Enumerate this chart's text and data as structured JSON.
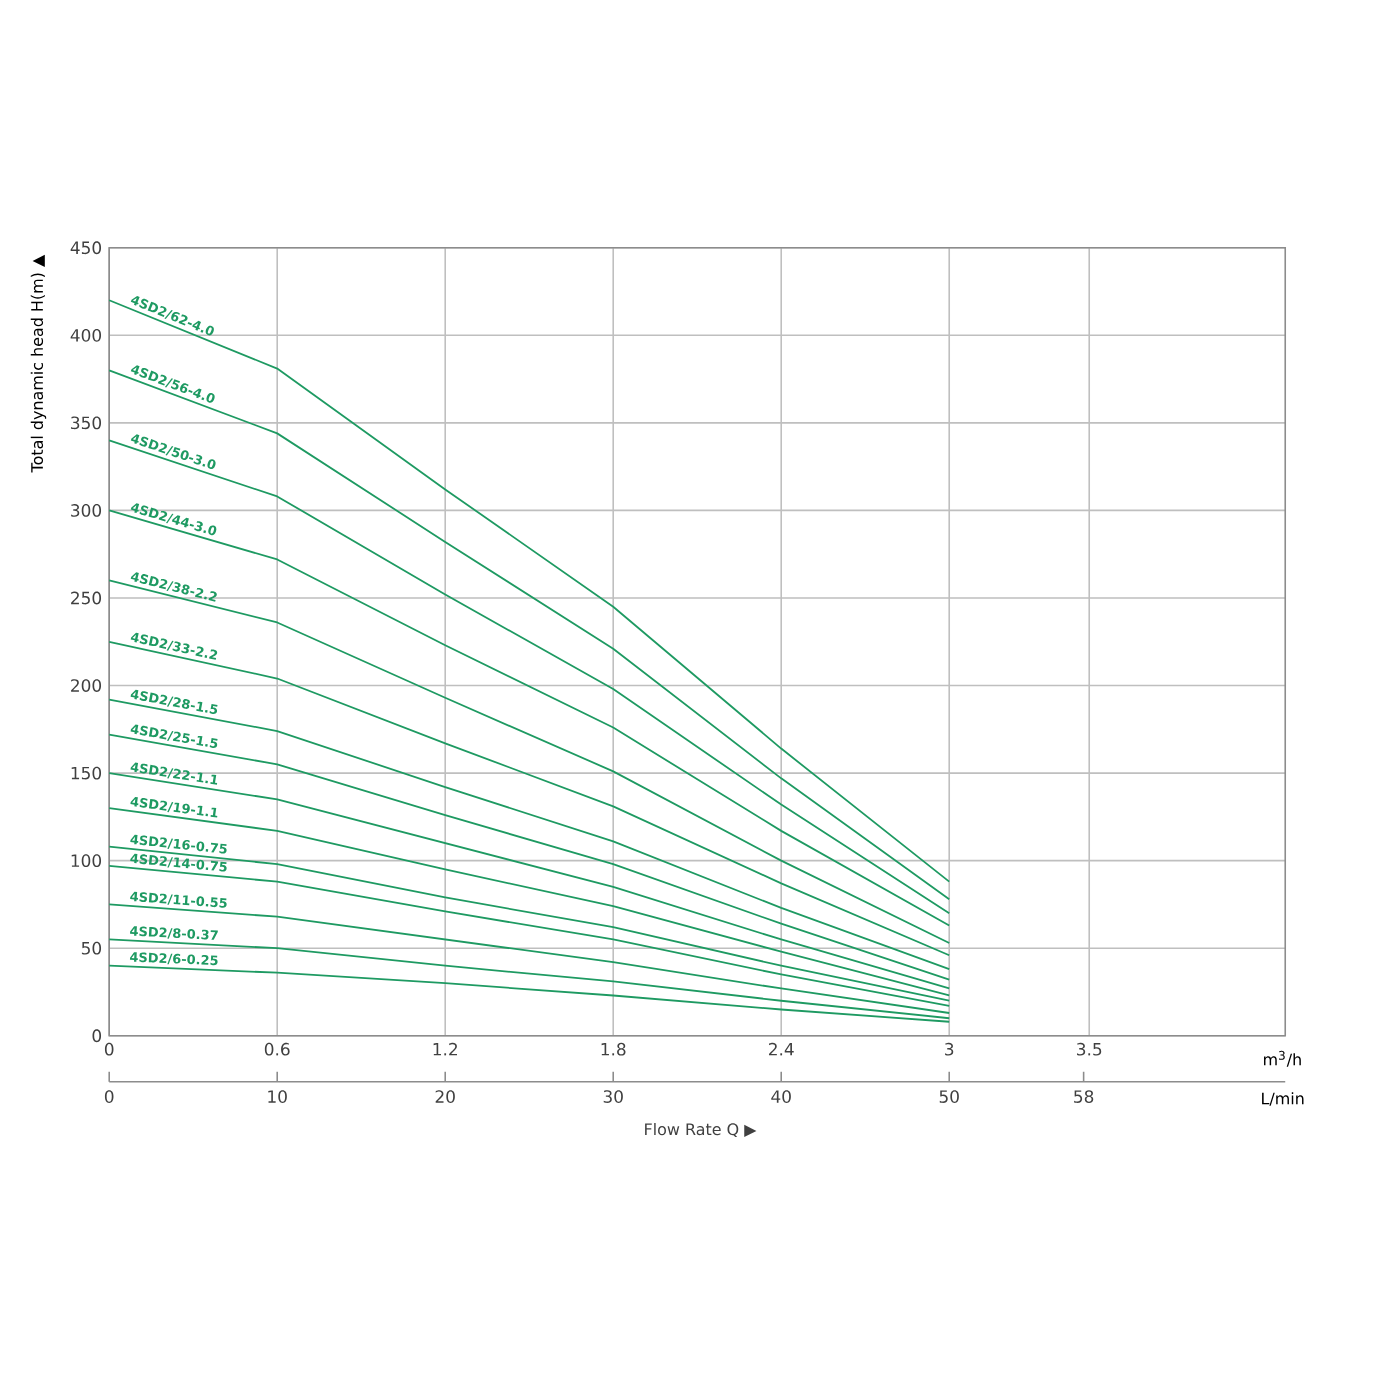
{
  "chart_data": {
    "type": "line",
    "ylabel": "Total dynamic head H(m) ▲",
    "xlabel": "m$^{3}$/h",
    "x2label": "L/min",
    "annotations": [
      "Flow Rate Q ▶"
    ],
    "x": [
      0,
      0.6,
      1.2,
      1.8,
      2.4,
      3
    ],
    "xlim": [
      0,
      4.2
    ],
    "xticks": [
      0,
      0.6,
      1.2,
      1.8,
      2.4,
      3,
      3.5
    ],
    "x2lim": [
      0,
      70
    ],
    "x2ticks": [
      0,
      10,
      20,
      30,
      40,
      50,
      58
    ],
    "ylim": [
      0,
      450
    ],
    "yticks": [
      0,
      50,
      100,
      150,
      200,
      250,
      300,
      350,
      400,
      450
    ],
    "grid": true,
    "series": [
      {
        "name": "4SD2/62-4.0",
        "color": "#1e9a62",
        "values": [
          420,
          381,
          312,
          245,
          164,
          88
        ]
      },
      {
        "name": "4SD2/56-4.0",
        "color": "#1e9a62",
        "values": [
          380,
          344,
          282,
          221,
          147,
          78
        ]
      },
      {
        "name": "4SD2/50-3.0",
        "color": "#1e9a62",
        "values": [
          340,
          308,
          252,
          198,
          132,
          70
        ]
      },
      {
        "name": "4SD2/44-3.0",
        "color": "#1e9a62",
        "values": [
          300,
          272,
          223,
          176,
          117,
          63
        ]
      },
      {
        "name": "4SD2/38-2.2",
        "color": "#1e9a62",
        "values": [
          260,
          236,
          193,
          151,
          100,
          53
        ]
      },
      {
        "name": "4SD2/33-2.2",
        "color": "#1e9a62",
        "values": [
          225,
          204,
          167,
          131,
          87,
          46
        ]
      },
      {
        "name": "4SD2/28-1.5",
        "color": "#1e9a62",
        "values": [
          192,
          174,
          142,
          111,
          73,
          38
        ]
      },
      {
        "name": "4SD2/25-1.5",
        "color": "#1e9a62",
        "values": [
          172,
          155,
          126,
          98,
          64,
          32
        ]
      },
      {
        "name": "4SD2/22-1.1",
        "color": "#1e9a62",
        "values": [
          150,
          135,
          110,
          85,
          55,
          27
        ]
      },
      {
        "name": "4SD2/19-1.1",
        "color": "#1e9a62",
        "values": [
          130,
          117,
          95,
          74,
          48,
          23
        ]
      },
      {
        "name": "4SD2/16-0.75",
        "color": "#1e9a62",
        "values": [
          108,
          98,
          79,
          62,
          40,
          20
        ]
      },
      {
        "name": "4SD2/14-0.75",
        "color": "#1e9a62",
        "values": [
          97,
          88,
          71,
          55,
          35,
          17
        ]
      },
      {
        "name": "4SD2/11-0.55",
        "color": "#1e9a62",
        "values": [
          75,
          68,
          55,
          42,
          27,
          13
        ]
      },
      {
        "name": "4SD2/8-0.37",
        "color": "#1e9a62",
        "values": [
          55,
          50,
          40,
          31,
          20,
          10
        ]
      },
      {
        "name": "4SD2/6-0.25",
        "color": "#1e9a62",
        "values": [
          40,
          36,
          30,
          23,
          15,
          8
        ]
      }
    ]
  }
}
